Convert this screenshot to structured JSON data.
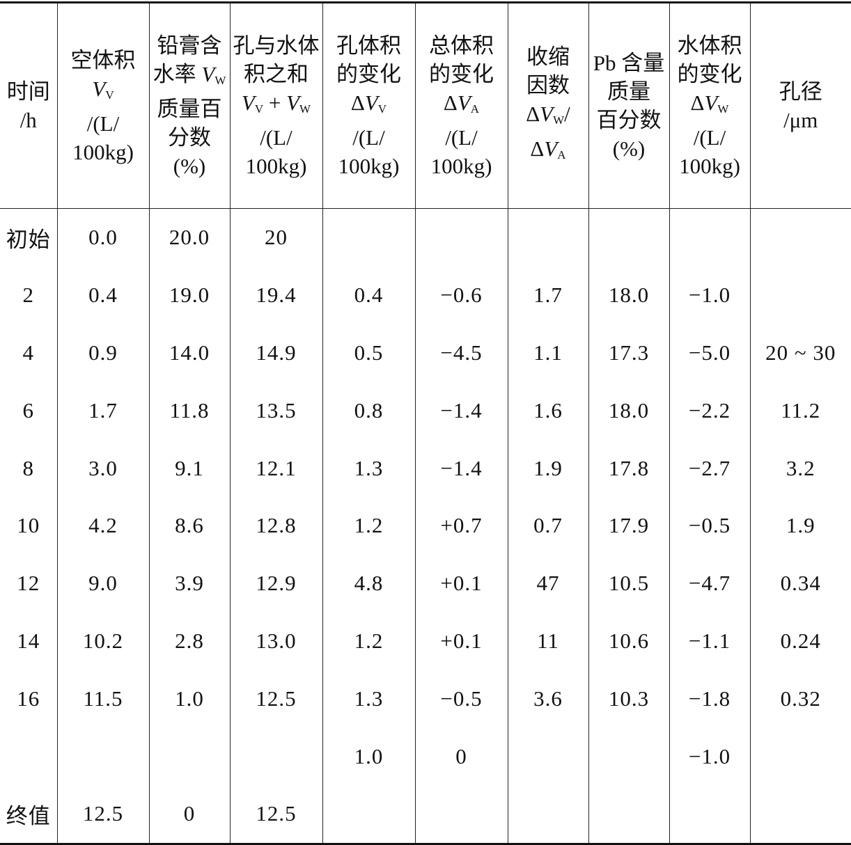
{
  "table": {
    "headers": [
      {
        "lines": [
          [
            {
              "t": "时间"
            }
          ],
          [
            {
              "t": "/h"
            }
          ]
        ]
      },
      {
        "lines": [
          [
            {
              "t": "空体积"
            }
          ],
          [
            {
              "t": "V",
              "i": 1
            },
            {
              "t": "V",
              "s": 1
            }
          ],
          [
            {
              "t": "/(L/"
            }
          ],
          [
            {
              "t": "100kg)"
            }
          ]
        ]
      },
      {
        "lines": [
          [
            {
              "t": "铅膏含"
            }
          ],
          [
            {
              "t": "水率 "
            },
            {
              "t": "V",
              "i": 1
            },
            {
              "t": "W",
              "s": 1
            }
          ],
          [
            {
              "t": "质量百"
            }
          ],
          [
            {
              "t": "分数"
            }
          ],
          [
            {
              "t": "(%)"
            }
          ]
        ]
      },
      {
        "lines": [
          [
            {
              "t": "孔与水体"
            }
          ],
          [
            {
              "t": "积之和"
            }
          ],
          [
            {
              "t": "V",
              "i": 1
            },
            {
              "t": "V",
              "s": 1
            },
            {
              "t": " + "
            },
            {
              "t": "V",
              "i": 1
            },
            {
              "t": "W",
              "s": 1
            }
          ],
          [
            {
              "t": "/(L/"
            }
          ],
          [
            {
              "t": "100kg)"
            }
          ]
        ]
      },
      {
        "lines": [
          [
            {
              "t": "孔体积"
            }
          ],
          [
            {
              "t": "的变化"
            }
          ],
          [
            {
              "t": "Δ"
            },
            {
              "t": "V",
              "i": 1
            },
            {
              "t": "V",
              "s": 1
            }
          ],
          [
            {
              "t": "/(L/"
            }
          ],
          [
            {
              "t": "100kg)"
            }
          ]
        ]
      },
      {
        "lines": [
          [
            {
              "t": "总体积"
            }
          ],
          [
            {
              "t": "的变化"
            }
          ],
          [
            {
              "t": "Δ"
            },
            {
              "t": "V",
              "i": 1
            },
            {
              "t": "A",
              "s": 1
            }
          ],
          [
            {
              "t": "/(L/"
            }
          ],
          [
            {
              "t": "100kg)"
            }
          ]
        ]
      },
      {
        "lines": [
          [
            {
              "t": "收缩"
            }
          ],
          [
            {
              "t": "因数"
            }
          ],
          [
            {
              "t": "Δ"
            },
            {
              "t": "V",
              "i": 1
            },
            {
              "t": "W",
              "s": 1
            },
            {
              "t": "/"
            }
          ],
          [
            {
              "t": "Δ"
            },
            {
              "t": "V",
              "i": 1
            },
            {
              "t": "A",
              "s": 1
            }
          ]
        ]
      },
      {
        "lines": [
          [
            {
              "t": "Pb 含量"
            }
          ],
          [
            {
              "t": "质量"
            }
          ],
          [
            {
              "t": "百分数"
            }
          ],
          [
            {
              "t": "(%)"
            }
          ]
        ]
      },
      {
        "lines": [
          [
            {
              "t": "水体积"
            }
          ],
          [
            {
              "t": "的变化"
            }
          ],
          [
            {
              "t": "Δ"
            },
            {
              "t": "V",
              "i": 1
            },
            {
              "t": "W",
              "s": 1
            }
          ],
          [
            {
              "t": "/(L/"
            }
          ],
          [
            {
              "t": "100kg)"
            }
          ]
        ]
      },
      {
        "lines": [
          [
            {
              "t": "孔径"
            }
          ],
          [
            {
              "t": "/μm"
            }
          ]
        ]
      }
    ],
    "rows": [
      [
        "初始",
        "0.0",
        "20.0",
        "20",
        "",
        "",
        "",
        "",
        "",
        ""
      ],
      [
        "2",
        "0.4",
        "19.0",
        "19.4",
        "0.4",
        "−0.6",
        "1.7",
        "18.0",
        "−1.0",
        ""
      ],
      [
        "4",
        "0.9",
        "14.0",
        "14.9",
        "0.5",
        "−4.5",
        "1.1",
        "17.3",
        "−5.0",
        "20 ~ 30"
      ],
      [
        "6",
        "1.7",
        "11.8",
        "13.5",
        "0.8",
        "−1.4",
        "1.6",
        "18.0",
        "−2.2",
        "11.2"
      ],
      [
        "8",
        "3.0",
        "9.1",
        "12.1",
        "1.3",
        "−1.4",
        "1.9",
        "17.8",
        "−2.7",
        "3.2"
      ],
      [
        "10",
        "4.2",
        "8.6",
        "12.8",
        "1.2",
        "+0.7",
        "0.7",
        "17.9",
        "−0.5",
        "1.9"
      ],
      [
        "12",
        "9.0",
        "3.9",
        "12.9",
        "4.8",
        "+0.1",
        "47",
        "10.5",
        "−4.7",
        "0.34"
      ],
      [
        "14",
        "10.2",
        "2.8",
        "13.0",
        "1.2",
        "+0.1",
        "11",
        "10.6",
        "−1.1",
        "0.24"
      ],
      [
        "16",
        "11.5",
        "1.0",
        "12.5",
        "1.3",
        "−0.5",
        "3.6",
        "10.3",
        "−1.8",
        "0.32"
      ],
      [
        "",
        "",
        "",
        "",
        "1.0",
        "0",
        "",
        "",
        "−1.0",
        ""
      ],
      [
        "终值",
        "12.5",
        "0",
        "12.5",
        "",
        "",
        "",
        "",
        "",
        ""
      ]
    ]
  }
}
